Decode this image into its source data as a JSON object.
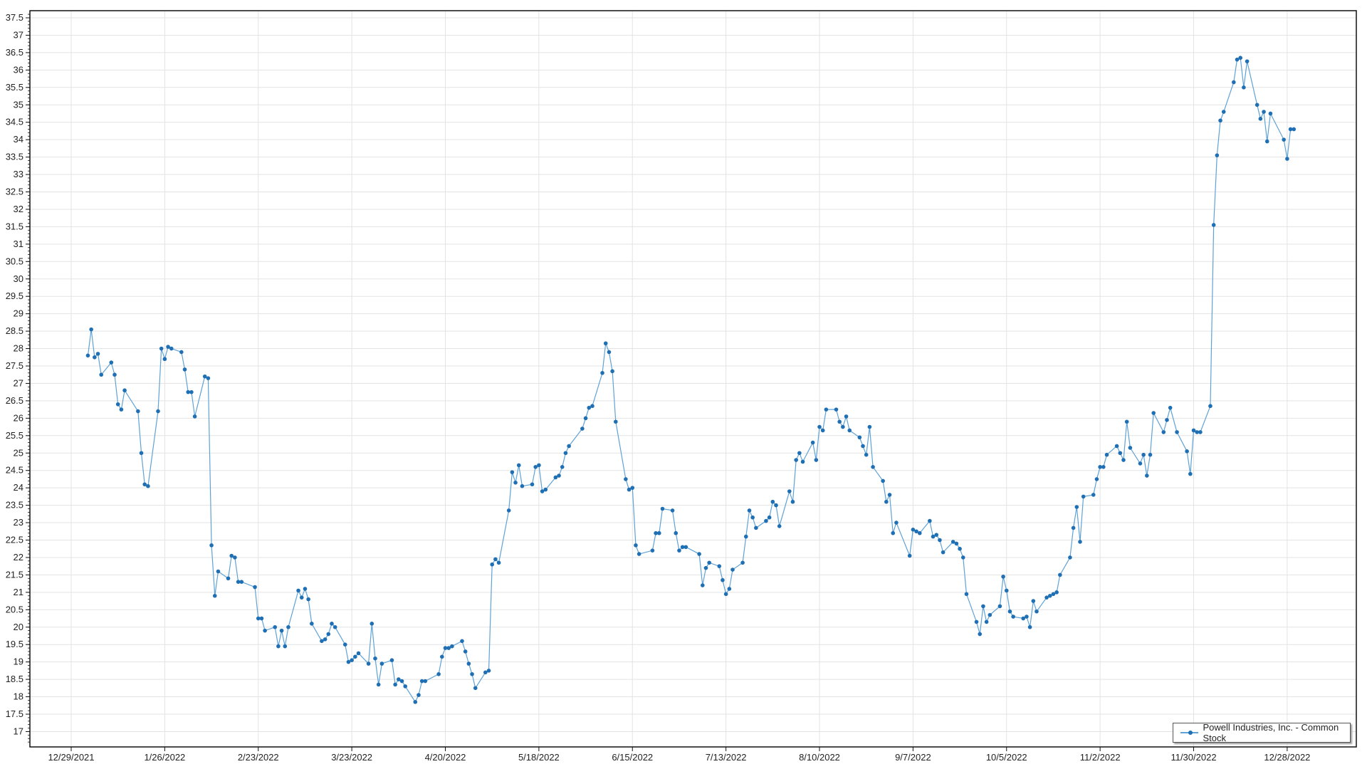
{
  "chart_data": {
    "type": "line",
    "title": "",
    "xlabel": "",
    "ylabel": "",
    "ylim": [
      16.6,
      37.7
    ],
    "xlim": [
      "2021-12-25",
      "2023-01-22"
    ],
    "y_ticks": [
      "17",
      "17.5",
      "18",
      "18.5",
      "19",
      "19.5",
      "20",
      "20.5",
      "21",
      "21.5",
      "22",
      "22.5",
      "23",
      "23.5",
      "24",
      "24.5",
      "25",
      "25.5",
      "26",
      "26.5",
      "27",
      "27.5",
      "28",
      "28.5",
      "29",
      "29.5",
      "30",
      "30.5",
      "31",
      "31.5",
      "32",
      "32.5",
      "33",
      "33.5",
      "34",
      "34.5",
      "35",
      "35.5",
      "36",
      "36.5",
      "37",
      "37.5"
    ],
    "x_ticks": [
      "12/29/2021",
      "1/26/2022",
      "2/23/2022",
      "3/23/2022",
      "4/20/2022",
      "5/18/2022",
      "6/15/2022",
      "7/13/2022",
      "8/10/2022",
      "9/7/2022",
      "10/5/2022",
      "11/2/2022",
      "11/30/2022",
      "12/28/2022"
    ],
    "grid": true,
    "legend_position": "bottom-right",
    "colors": {
      "line": "#5fa2d6",
      "marker": "#1f6fb4",
      "grid": "#e3e3e3"
    },
    "series": [
      {
        "name": "Powell Industries, Inc. - Common Stock",
        "points": [
          [
            "2022-01-03",
            27.8
          ],
          [
            "2022-01-04",
            28.55
          ],
          [
            "2022-01-05",
            27.75
          ],
          [
            "2022-01-06",
            27.85
          ],
          [
            "2022-01-07",
            27.25
          ],
          [
            "2022-01-10",
            27.6
          ],
          [
            "2022-01-11",
            27.25
          ],
          [
            "2022-01-12",
            26.4
          ],
          [
            "2022-01-13",
            26.25
          ],
          [
            "2022-01-14",
            26.8
          ],
          [
            "2022-01-18",
            26.2
          ],
          [
            "2022-01-19",
            25.0
          ],
          [
            "2022-01-20",
            24.1
          ],
          [
            "2022-01-21",
            24.05
          ],
          [
            "2022-01-24",
            26.2
          ],
          [
            "2022-01-25",
            28.0
          ],
          [
            "2022-01-26",
            27.7
          ],
          [
            "2022-01-27",
            28.05
          ],
          [
            "2022-01-28",
            28.0
          ],
          [
            "2022-01-31",
            27.9
          ],
          [
            "2022-02-01",
            27.4
          ],
          [
            "2022-02-02",
            26.75
          ],
          [
            "2022-02-03",
            26.75
          ],
          [
            "2022-02-04",
            26.05
          ],
          [
            "2022-02-07",
            27.2
          ],
          [
            "2022-02-08",
            27.15
          ],
          [
            "2022-02-09",
            22.35
          ],
          [
            "2022-02-10",
            20.9
          ],
          [
            "2022-02-11",
            21.6
          ],
          [
            "2022-02-14",
            21.4
          ],
          [
            "2022-02-15",
            22.05
          ],
          [
            "2022-02-16",
            22.0
          ],
          [
            "2022-02-17",
            21.3
          ],
          [
            "2022-02-18",
            21.3
          ],
          [
            "2022-02-22",
            21.15
          ],
          [
            "2022-02-23",
            20.25
          ],
          [
            "2022-02-24",
            20.25
          ],
          [
            "2022-02-25",
            19.9
          ],
          [
            "2022-02-28",
            20.0
          ],
          [
            "2022-03-01",
            19.45
          ],
          [
            "2022-03-02",
            19.9
          ],
          [
            "2022-03-03",
            19.45
          ],
          [
            "2022-03-04",
            20.0
          ],
          [
            "2022-03-07",
            21.05
          ],
          [
            "2022-03-08",
            20.85
          ],
          [
            "2022-03-09",
            21.1
          ],
          [
            "2022-03-10",
            20.8
          ],
          [
            "2022-03-11",
            20.1
          ],
          [
            "2022-03-14",
            19.6
          ],
          [
            "2022-03-15",
            19.65
          ],
          [
            "2022-03-16",
            19.8
          ],
          [
            "2022-03-17",
            20.1
          ],
          [
            "2022-03-18",
            20.0
          ],
          [
            "2022-03-21",
            19.5
          ],
          [
            "2022-03-22",
            19.0
          ],
          [
            "2022-03-23",
            19.05
          ],
          [
            "2022-03-24",
            19.15
          ],
          [
            "2022-03-25",
            19.25
          ],
          [
            "2022-03-28",
            18.95
          ],
          [
            "2022-03-29",
            20.1
          ],
          [
            "2022-03-30",
            19.1
          ],
          [
            "2022-03-31",
            18.35
          ],
          [
            "2022-04-01",
            18.95
          ],
          [
            "2022-04-04",
            19.05
          ],
          [
            "2022-04-05",
            18.35
          ],
          [
            "2022-04-06",
            18.5
          ],
          [
            "2022-04-07",
            18.45
          ],
          [
            "2022-04-08",
            18.3
          ],
          [
            "2022-04-11",
            17.85
          ],
          [
            "2022-04-12",
            18.05
          ],
          [
            "2022-04-13",
            18.45
          ],
          [
            "2022-04-14",
            18.45
          ],
          [
            "2022-04-18",
            18.65
          ],
          [
            "2022-04-19",
            19.15
          ],
          [
            "2022-04-20",
            19.4
          ],
          [
            "2022-04-21",
            19.4
          ],
          [
            "2022-04-22",
            19.45
          ],
          [
            "2022-04-25",
            19.6
          ],
          [
            "2022-04-26",
            19.3
          ],
          [
            "2022-04-27",
            18.95
          ],
          [
            "2022-04-28",
            18.65
          ],
          [
            "2022-04-29",
            18.25
          ],
          [
            "2022-05-02",
            18.7
          ],
          [
            "2022-05-03",
            18.75
          ],
          [
            "2022-05-04",
            21.8
          ],
          [
            "2022-05-05",
            21.95
          ],
          [
            "2022-05-06",
            21.85
          ],
          [
            "2022-05-09",
            23.35
          ],
          [
            "2022-05-10",
            24.45
          ],
          [
            "2022-05-11",
            24.15
          ],
          [
            "2022-05-12",
            24.65
          ],
          [
            "2022-05-13",
            24.05
          ],
          [
            "2022-05-16",
            24.1
          ],
          [
            "2022-05-17",
            24.6
          ],
          [
            "2022-05-18",
            24.65
          ],
          [
            "2022-05-19",
            23.9
          ],
          [
            "2022-05-20",
            23.95
          ],
          [
            "2022-05-23",
            24.3
          ],
          [
            "2022-05-24",
            24.35
          ],
          [
            "2022-05-25",
            24.6
          ],
          [
            "2022-05-26",
            25.0
          ],
          [
            "2022-05-27",
            25.2
          ],
          [
            "2022-05-31",
            25.7
          ],
          [
            "2022-06-01",
            26.0
          ],
          [
            "2022-06-02",
            26.3
          ],
          [
            "2022-06-03",
            26.35
          ],
          [
            "2022-06-06",
            27.3
          ],
          [
            "2022-06-07",
            28.15
          ],
          [
            "2022-06-08",
            27.9
          ],
          [
            "2022-06-09",
            27.35
          ],
          [
            "2022-06-10",
            25.9
          ],
          [
            "2022-06-13",
            24.25
          ],
          [
            "2022-06-14",
            23.95
          ],
          [
            "2022-06-15",
            24.0
          ],
          [
            "2022-06-16",
            22.35
          ],
          [
            "2022-06-17",
            22.1
          ],
          [
            "2022-06-21",
            22.2
          ],
          [
            "2022-06-22",
            22.7
          ],
          [
            "2022-06-23",
            22.7
          ],
          [
            "2022-06-24",
            23.4
          ],
          [
            "2022-06-27",
            23.35
          ],
          [
            "2022-06-28",
            22.7
          ],
          [
            "2022-06-29",
            22.2
          ],
          [
            "2022-06-30",
            22.3
          ],
          [
            "2022-07-01",
            22.3
          ],
          [
            "2022-07-05",
            22.1
          ],
          [
            "2022-07-06",
            21.2
          ],
          [
            "2022-07-07",
            21.7
          ],
          [
            "2022-07-08",
            21.85
          ],
          [
            "2022-07-11",
            21.75
          ],
          [
            "2022-07-12",
            21.35
          ],
          [
            "2022-07-13",
            20.95
          ],
          [
            "2022-07-14",
            21.1
          ],
          [
            "2022-07-15",
            21.65
          ],
          [
            "2022-07-18",
            21.85
          ],
          [
            "2022-07-19",
            22.6
          ],
          [
            "2022-07-20",
            23.35
          ],
          [
            "2022-07-21",
            23.15
          ],
          [
            "2022-07-22",
            22.85
          ],
          [
            "2022-07-25",
            23.05
          ],
          [
            "2022-07-26",
            23.15
          ],
          [
            "2022-07-27",
            23.6
          ],
          [
            "2022-07-28",
            23.5
          ],
          [
            "2022-07-29",
            22.9
          ],
          [
            "2022-08-01",
            23.9
          ],
          [
            "2022-08-02",
            23.6
          ],
          [
            "2022-08-03",
            24.8
          ],
          [
            "2022-08-04",
            25.0
          ],
          [
            "2022-08-05",
            24.75
          ],
          [
            "2022-08-08",
            25.3
          ],
          [
            "2022-08-09",
            24.8
          ],
          [
            "2022-08-10",
            25.75
          ],
          [
            "2022-08-11",
            25.65
          ],
          [
            "2022-08-12",
            26.25
          ],
          [
            "2022-08-15",
            26.25
          ],
          [
            "2022-08-16",
            25.9
          ],
          [
            "2022-08-17",
            25.75
          ],
          [
            "2022-08-18",
            26.05
          ],
          [
            "2022-08-19",
            25.65
          ],
          [
            "2022-08-22",
            25.45
          ],
          [
            "2022-08-23",
            25.2
          ],
          [
            "2022-08-24",
            24.95
          ],
          [
            "2022-08-25",
            25.75
          ],
          [
            "2022-08-26",
            24.6
          ],
          [
            "2022-08-29",
            24.2
          ],
          [
            "2022-08-30",
            23.6
          ],
          [
            "2022-08-31",
            23.8
          ],
          [
            "2022-09-01",
            22.7
          ],
          [
            "2022-09-02",
            23.0
          ],
          [
            "2022-09-06",
            22.05
          ],
          [
            "2022-09-07",
            22.8
          ],
          [
            "2022-09-08",
            22.75
          ],
          [
            "2022-09-09",
            22.7
          ],
          [
            "2022-09-12",
            23.05
          ],
          [
            "2022-09-13",
            22.6
          ],
          [
            "2022-09-14",
            22.65
          ],
          [
            "2022-09-15",
            22.5
          ],
          [
            "2022-09-16",
            22.15
          ],
          [
            "2022-09-19",
            22.45
          ],
          [
            "2022-09-20",
            22.4
          ],
          [
            "2022-09-21",
            22.25
          ],
          [
            "2022-09-22",
            22.0
          ],
          [
            "2022-09-23",
            20.95
          ],
          [
            "2022-09-26",
            20.15
          ],
          [
            "2022-09-27",
            19.8
          ],
          [
            "2022-09-28",
            20.6
          ],
          [
            "2022-09-29",
            20.15
          ],
          [
            "2022-09-30",
            20.35
          ],
          [
            "2022-10-03",
            20.6
          ],
          [
            "2022-10-04",
            21.45
          ],
          [
            "2022-10-05",
            21.05
          ],
          [
            "2022-10-06",
            20.45
          ],
          [
            "2022-10-07",
            20.3
          ],
          [
            "2022-10-10",
            20.25
          ],
          [
            "2022-10-11",
            20.3
          ],
          [
            "2022-10-12",
            20.0
          ],
          [
            "2022-10-13",
            20.75
          ],
          [
            "2022-10-14",
            20.45
          ],
          [
            "2022-10-17",
            20.85
          ],
          [
            "2022-10-18",
            20.9
          ],
          [
            "2022-10-19",
            20.95
          ],
          [
            "2022-10-20",
            21.0
          ],
          [
            "2022-10-21",
            21.5
          ],
          [
            "2022-10-24",
            22.0
          ],
          [
            "2022-10-25",
            22.85
          ],
          [
            "2022-10-26",
            23.45
          ],
          [
            "2022-10-27",
            22.45
          ],
          [
            "2022-10-28",
            23.75
          ],
          [
            "2022-10-31",
            23.8
          ],
          [
            "2022-11-01",
            24.25
          ],
          [
            "2022-11-02",
            24.6
          ],
          [
            "2022-11-03",
            24.6
          ],
          [
            "2022-11-04",
            24.95
          ],
          [
            "2022-11-07",
            25.2
          ],
          [
            "2022-11-08",
            25.0
          ],
          [
            "2022-11-09",
            24.8
          ],
          [
            "2022-11-10",
            25.9
          ],
          [
            "2022-11-11",
            25.15
          ],
          [
            "2022-11-14",
            24.7
          ],
          [
            "2022-11-15",
            24.95
          ],
          [
            "2022-11-16",
            24.35
          ],
          [
            "2022-11-17",
            24.95
          ],
          [
            "2022-11-18",
            26.15
          ],
          [
            "2022-11-21",
            25.6
          ],
          [
            "2022-11-22",
            25.95
          ],
          [
            "2022-11-23",
            26.3
          ],
          [
            "2022-11-25",
            25.6
          ],
          [
            "2022-11-28",
            25.05
          ],
          [
            "2022-11-29",
            24.4
          ],
          [
            "2022-11-30",
            25.65
          ],
          [
            "2022-12-01",
            25.6
          ],
          [
            "2022-12-02",
            25.6
          ],
          [
            "2022-12-05",
            26.35
          ],
          [
            "2022-12-06",
            31.55
          ],
          [
            "2022-12-07",
            33.55
          ],
          [
            "2022-12-08",
            34.55
          ],
          [
            "2022-12-09",
            34.8
          ],
          [
            "2022-12-12",
            35.65
          ],
          [
            "2022-12-13",
            36.3
          ],
          [
            "2022-12-14",
            36.35
          ],
          [
            "2022-12-15",
            35.5
          ],
          [
            "2022-12-16",
            36.25
          ],
          [
            "2022-12-19",
            35.0
          ],
          [
            "2022-12-20",
            34.6
          ],
          [
            "2022-12-21",
            34.8
          ],
          [
            "2022-12-22",
            33.95
          ],
          [
            "2022-12-23",
            34.75
          ],
          [
            "2022-12-27",
            34.0
          ],
          [
            "2022-12-28",
            33.45
          ],
          [
            "2022-12-29",
            34.3
          ],
          [
            "2022-12-30",
            34.3
          ]
        ]
      }
    ]
  },
  "legend": {
    "label": "Powell Industries, Inc. - Common Stock"
  }
}
